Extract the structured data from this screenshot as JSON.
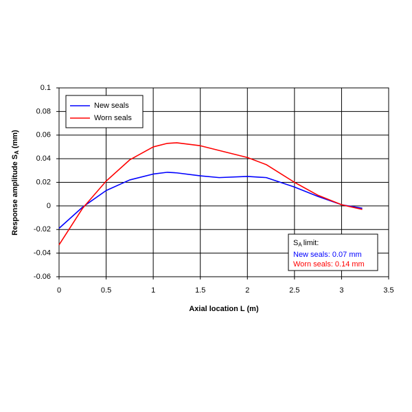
{
  "chart_data": {
    "type": "line",
    "x_label": "Axial location L (m)",
    "y_label": {
      "text": "Response amplitude S",
      "sub": "A",
      "unit": "(mm)"
    },
    "x": [
      0,
      0.25,
      0.5,
      0.75,
      1.0,
      1.15,
      1.25,
      1.5,
      1.7,
      2.0,
      2.2,
      2.5,
      2.75,
      3.0,
      3.22
    ],
    "series": [
      {
        "name": "New seals",
        "color": "#0000ff",
        "values": [
          -0.019,
          -0.001,
          0.013,
          0.022,
          0.027,
          0.0285,
          0.028,
          0.0255,
          0.024,
          0.025,
          0.024,
          0.016,
          0.008,
          0.001,
          -0.002
        ]
      },
      {
        "name": "Worn seals",
        "color": "#ff0000",
        "values": [
          -0.033,
          -0.002,
          0.021,
          0.039,
          0.05,
          0.053,
          0.0535,
          0.051,
          0.047,
          0.041,
          0.035,
          0.02,
          0.009,
          0.001,
          -0.003
        ]
      }
    ],
    "xlim": [
      0,
      3.5
    ],
    "xticks": [
      0,
      0.5,
      1,
      1.5,
      2,
      2.5,
      3,
      3.5
    ],
    "ylim": [
      -0.06,
      0.1
    ],
    "yticks": [
      -0.06,
      -0.04,
      -0.02,
      0,
      0.02,
      0.04,
      0.06,
      0.08,
      0.1
    ],
    "grid": true,
    "legend": "upper left",
    "annotation": {
      "title": {
        "text": "S",
        "sub": "A",
        "rest": "limit:"
      },
      "lines": [
        {
          "text": "New seals: 0.07 mm",
          "color": "#0000ff"
        },
        {
          "text": "Worn seals: 0.14 mm",
          "color": "#ff0000"
        }
      ]
    }
  }
}
